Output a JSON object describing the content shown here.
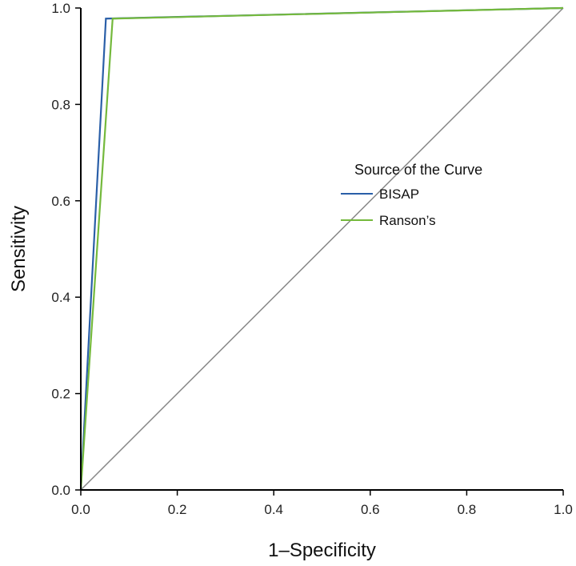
{
  "chart_data": {
    "type": "line",
    "xlabel": "1–Specificity",
    "ylabel": "Sensitivity",
    "xlim": [
      0,
      1
    ],
    "ylim": [
      0,
      1
    ],
    "xticks": [
      "0.0",
      "0.2",
      "0.4",
      "0.6",
      "0.8",
      "1.0"
    ],
    "yticks": [
      "0.0",
      "0.2",
      "0.4",
      "0.6",
      "0.8",
      "1.0"
    ],
    "grid": false,
    "legend": {
      "title": "Source of the Curve",
      "placement": "right"
    },
    "reference_line": {
      "x": [
        0,
        1
      ],
      "y": [
        0,
        1
      ],
      "color": "#888888"
    },
    "series": [
      {
        "name": "BISAP",
        "color": "#2a5fa8",
        "x": [
          0,
          0.052,
          1
        ],
        "y": [
          0,
          0.978,
          1
        ]
      },
      {
        "name": "Ranson’s",
        "color": "#74b93c",
        "x": [
          0,
          0.066,
          1
        ],
        "y": [
          0,
          0.978,
          1
        ]
      }
    ]
  }
}
